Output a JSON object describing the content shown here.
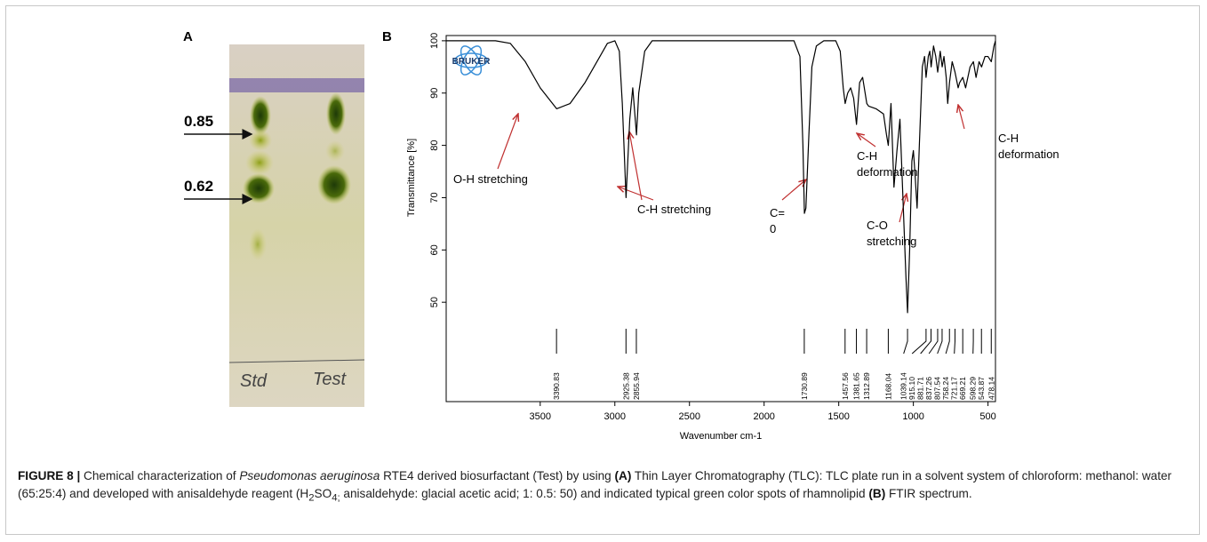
{
  "panels": {
    "a": "A",
    "b": "B"
  },
  "tlc": {
    "spots": [
      0.85,
      0.62
    ],
    "lanes": [
      "Std",
      "Test"
    ]
  },
  "chart_data": {
    "type": "line",
    "ylabel": "Transmittance [%]",
    "xlabel": "Wavenumber cm-1",
    "logo": "BRUKER",
    "xlim": [
      4130,
      450
    ],
    "ylim": [
      31,
      101
    ],
    "xticks": [
      3500,
      3000,
      2500,
      2000,
      1500,
      1000,
      500
    ],
    "yticks": [
      50,
      60,
      70,
      80,
      90,
      100
    ],
    "color": "#000000",
    "x": [
      4130,
      3800,
      3700,
      3600,
      3500,
      3390,
      3300,
      3200,
      3100,
      3050,
      3000,
      2970,
      2950,
      2925,
      2900,
      2880,
      2855,
      2840,
      2800,
      2750,
      2500,
      2000,
      1800,
      1760,
      1740,
      1730,
      1720,
      1700,
      1680,
      1650,
      1600,
      1520,
      1490,
      1470,
      1457,
      1440,
      1420,
      1400,
      1381,
      1360,
      1340,
      1312,
      1300,
      1250,
      1200,
      1180,
      1168,
      1150,
      1130,
      1110,
      1090,
      1070,
      1050,
      1039,
      1025,
      1010,
      1000,
      990,
      975,
      960,
      940,
      925,
      915,
      900,
      890,
      881,
      865,
      850,
      837,
      820,
      807,
      795,
      780,
      770,
      758,
      740,
      721,
      700,
      690,
      669,
      650,
      620,
      598,
      580,
      560,
      543,
      520,
      500,
      478,
      460,
      450
    ],
    "values": [
      100,
      100,
      99.5,
      96,
      91,
      87,
      88,
      92,
      97,
      99.5,
      100,
      98,
      88,
      70,
      85,
      91,
      82,
      90,
      98,
      100,
      100,
      100,
      100,
      97,
      80,
      67,
      68,
      82,
      95,
      99,
      100,
      100,
      98,
      91,
      88,
      90,
      91,
      89,
      84,
      92,
      93,
      88,
      87.5,
      87,
      86,
      82,
      80,
      88,
      72,
      79,
      85,
      70,
      55,
      48,
      60,
      77,
      79,
      75,
      68,
      80,
      95,
      97,
      93,
      97,
      98,
      95,
      99,
      97,
      94,
      98,
      95,
      97,
      93,
      88,
      92,
      96,
      94,
      91,
      92,
      93,
      91,
      95,
      96,
      93,
      96,
      95,
      97,
      97,
      96,
      99,
      100
    ],
    "peaks": [
      3390.83,
      2925.38,
      2855.94,
      1730.89,
      1457.56,
      1381.65,
      1312.89,
      1168.04,
      1039.14,
      {
        "value": 915.1,
        "label": "915.10"
      },
      881.71,
      837.26,
      807.54,
      758.24,
      721.17,
      669.21,
      598.29,
      543.87,
      478.14
    ],
    "annotations": [
      {
        "lines": [
          "O-H stretching"
        ]
      },
      {
        "lines": [
          "C-H stretching"
        ]
      },
      {
        "lines": [
          "C=",
          "0"
        ]
      },
      {
        "lines": [
          "C-H",
          "deformation"
        ]
      },
      {
        "lines": [
          "C-O",
          "stretching"
        ]
      },
      {
        "lines": [
          "C-H",
          "deformation"
        ]
      }
    ]
  },
  "caption": [
    "FIGURE 8 |",
    " Chemical characterization of ",
    "Pseudomonas aeruginosa",
    " RTE4 derived biosurfactant (Test) by using ",
    "(A)",
    " Thin Layer Chromatography (TLC): TLC plate run in a solvent system of chloroform: methanol: water (65:25:4) and developed with anisaldehyde reagent (H",
    "2",
    "SO",
    "4;",
    " anisaldehyde: glacial acetic acid; 1: 0.5: 50) and indicated typical green color spots of rhamnolipid ",
    "(B)",
    " FTIR spectrum."
  ]
}
